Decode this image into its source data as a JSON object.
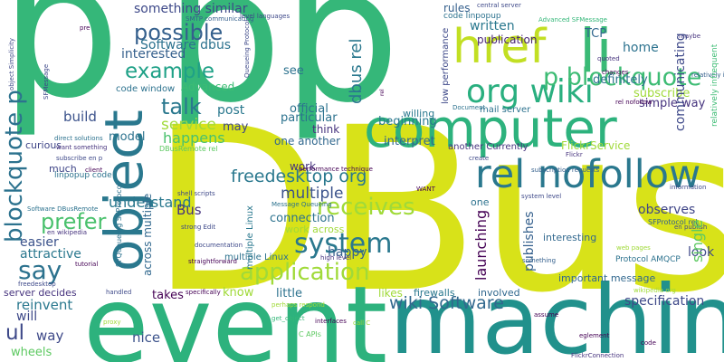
{
  "words": [
    {
      "id": "w-p1",
      "text": "p",
      "color": "#35b779"
    },
    {
      "id": "w-pp",
      "text": "pp",
      "color": "#35b779"
    },
    {
      "id": "w-dbus",
      "text": "DBus",
      "color": "#d8e219"
    },
    {
      "id": "w-event",
      "text": "event",
      "color": "#2db27d"
    },
    {
      "id": "w-machine",
      "text": "machine",
      "color": "#21918c"
    },
    {
      "id": "w-computer",
      "text": "computer",
      "color": "#2db27d"
    },
    {
      "id": "w-li",
      "text": "li",
      "color": "#3aba76"
    },
    {
      "id": "w-href",
      "text": "href",
      "color": "#c2df23"
    },
    {
      "id": "w-relnf",
      "text": "rel nofollow",
      "color": "#2a788e"
    },
    {
      "id": "w-orgwiki",
      "text": "org wiki",
      "color": "#29af7f"
    },
    {
      "id": "w-pblock",
      "text": "p blockquote",
      "color": "#3dbc74"
    },
    {
      "id": "w-system",
      "text": "system",
      "color": "#2a788e"
    },
    {
      "id": "w-application",
      "text": "application",
      "color": "#a0da39"
    },
    {
      "id": "w-receives",
      "text": "receives",
      "color": "#a0da39"
    },
    {
      "id": "w-say",
      "text": "say",
      "color": "#2c728e"
    },
    {
      "id": "w-possible",
      "text": "possible",
      "color": "#35608d"
    },
    {
      "id": "w-example",
      "text": "example",
      "color": "#1fa187"
    },
    {
      "id": "w-talk",
      "text": "talk",
      "color": "#2a788e"
    },
    {
      "id": "w-prefer",
      "text": "prefer",
      "color": "#4ac16d"
    },
    {
      "id": "w-fdorg",
      "text": "freedesktop org",
      "color": "#2a788e"
    },
    {
      "id": "w-multiple",
      "text": "multiple",
      "color": "#3b528b"
    },
    {
      "id": "w-wikisw",
      "text": "wiki Software",
      "color": "#31688e"
    },
    {
      "id": "w-nice",
      "text": "nice",
      "color": "#3b528b"
    },
    {
      "id": "w-ul",
      "text": "ul",
      "color": "#3e4989"
    },
    {
      "id": "w-way",
      "text": "way",
      "color": "#3e4989"
    },
    {
      "id": "w-wheels",
      "text": "wheels",
      "color": "#5ec962"
    },
    {
      "id": "w-reinvent",
      "text": "reinvent",
      "color": "#2a788e"
    },
    {
      "id": "w-will",
      "text": "will",
      "color": "#3e4989"
    },
    {
      "id": "w-attractive",
      "text": "attractive",
      "color": "#2a788e"
    },
    {
      "id": "w-easier",
      "text": "easier",
      "color": "#3b528b"
    },
    {
      "id": "w-serverdecides",
      "text": "server decides",
      "color": "#46337e"
    },
    {
      "id": "w-build",
      "text": "build",
      "color": "#3b528b"
    },
    {
      "id": "w-curious",
      "text": "curious",
      "color": "#404688"
    },
    {
      "id": "w-much",
      "text": "much",
      "color": "#404688"
    },
    {
      "id": "w-model",
      "text": "model",
      "color": "#2c728e"
    },
    {
      "id": "w-understand",
      "text": "understand",
      "color": "#2a788e"
    },
    {
      "id": "w-service",
      "text": "service",
      "color": "#a0da39"
    },
    {
      "id": "w-happens",
      "text": "happens",
      "color": "#4ac16d"
    },
    {
      "id": "w-post",
      "text": "post",
      "color": "#2a788e"
    },
    {
      "id": "w-may",
      "text": "may",
      "color": "#404688"
    },
    {
      "id": "w-advanced",
      "text": "Advanced",
      "color": "#3dbc74"
    },
    {
      "id": "w-codewindow",
      "text": "code window",
      "color": "#2c728e"
    },
    {
      "id": "w-sdbus",
      "text": "Software dbus",
      "color": "#2c728e"
    },
    {
      "id": "w-interested",
      "text": "interested",
      "color": "#35608d"
    },
    {
      "id": "w-somesim",
      "text": "something similar",
      "color": "#3e4989"
    },
    {
      "id": "w-bus",
      "text": "Bus",
      "color": "#46337e"
    },
    {
      "id": "w-takes",
      "text": "takes",
      "color": "#440154"
    },
    {
      "id": "w-know",
      "text": "know",
      "color": "#a0da39"
    },
    {
      "id": "w-little",
      "text": "little",
      "color": "#2c728e"
    },
    {
      "id": "w-happy",
      "text": "happy",
      "color": "#35608d"
    },
    {
      "id": "w-connection",
      "text": "connection",
      "color": "#2c728e"
    },
    {
      "id": "w-workacross",
      "text": "work across",
      "color": "#a0da39"
    },
    {
      "id": "w-work",
      "text": "work",
      "color": "#46337e"
    },
    {
      "id": "w-oneanother",
      "text": "one another",
      "color": "#31688e"
    },
    {
      "id": "w-think",
      "text": "think",
      "color": "#46337e"
    },
    {
      "id": "w-particular",
      "text": "particular",
      "color": "#2c728e"
    },
    {
      "id": "w-official",
      "text": "official",
      "color": "#2c728e"
    },
    {
      "id": "w-see",
      "text": "see",
      "color": "#2c728e"
    },
    {
      "id": "w-beginning",
      "text": "beginning",
      "color": "#2a788e"
    },
    {
      "id": "w-interpret",
      "text": "interpret",
      "color": "#31688e"
    },
    {
      "id": "w-willing",
      "text": "willing",
      "color": "#2a788e"
    },
    {
      "id": "w-publication",
      "text": "publication",
      "color": "#482475"
    },
    {
      "id": "w-written",
      "text": "written",
      "color": "#2a788e"
    },
    {
      "id": "w-rules",
      "text": "rules",
      "color": "#35608d"
    },
    {
      "id": "w-tcp",
      "text": "TCP",
      "color": "#31688e"
    },
    {
      "id": "w-home",
      "text": "home",
      "color": "#2c728e"
    },
    {
      "id": "w-definitely",
      "text": "definitely",
      "color": "#2c728e"
    },
    {
      "id": "w-subscribe",
      "text": "subscribe",
      "color": "#a0da39"
    },
    {
      "id": "w-simpleway",
      "text": "simple way",
      "color": "#46337e"
    },
    {
      "id": "w-flickrsvc",
      "text": "FlickrService",
      "color": "#a0da39"
    },
    {
      "id": "w-another",
      "text": "another Currently",
      "color": "#46337e"
    },
    {
      "id": "w-observes",
      "text": "observes",
      "color": "#404688"
    },
    {
      "id": "w-look",
      "text": "look",
      "color": "#3e4989"
    },
    {
      "id": "w-spec",
      "text": "specification",
      "color": "#3e4989"
    },
    {
      "id": "w-likes",
      "text": "likes",
      "color": "#a0da39"
    },
    {
      "id": "w-firewalls",
      "text": "firewalls",
      "color": "#2a788e"
    },
    {
      "id": "w-involved",
      "text": "involved",
      "color": "#31688e"
    },
    {
      "id": "w-one",
      "text": "one",
      "color": "#2c728e"
    },
    {
      "id": "w-interesting",
      "text": "interesting",
      "color": "#31688e"
    },
    {
      "id": "w-impmessage",
      "text": "important message",
      "color": "#31688e"
    },
    {
      "id": "w-mailserver",
      "text": "mail server",
      "color": "#2c728e"
    },
    {
      "id": "w-proto-amqcp",
      "text": "Protocol AMQCP",
      "color": "#2c728e"
    },
    {
      "id": "w-sfprotocol-rel",
      "text": "SFProtocol rel",
      "color": "#35608d"
    },
    {
      "id": "w-enpublish",
      "text": "en publish",
      "color": "#3e4989"
    },
    {
      "id": "w-smtp",
      "text": "SMTP communicating",
      "color": "#35608d"
    },
    {
      "id": "w-levellang",
      "text": "level languages",
      "color": "#3e4989"
    },
    {
      "id": "w-central",
      "text": "central server",
      "color": "#3e4989"
    },
    {
      "id": "w-codelinpopup",
      "text": "code linpopup",
      "color": "#2c728e"
    },
    {
      "id": "w-advsf",
      "text": "Advanced SFMessage",
      "color": "#35b779"
    },
    {
      "id": "w-direct",
      "text": "direct solutions",
      "color": "#2c728e"
    },
    {
      "id": "w-wantsome",
      "text": "want something",
      "color": "#46337e"
    },
    {
      "id": "w-subenp",
      "text": "subscribe en p",
      "color": "#3e4989"
    },
    {
      "id": "w-linpopup",
      "text": "linpopup code",
      "color": "#2c728e"
    },
    {
      "id": "w-sdbusremote",
      "text": "Software DBusRemote",
      "color": "#2c728e"
    },
    {
      "id": "w-enwiki",
      "text": "en wikipedia",
      "color": "#46337e"
    },
    {
      "id": "w-freedesk",
      "text": "freedesktop",
      "color": "#3e4989"
    },
    {
      "id": "w-perfresp",
      "text": "perhaps respond",
      "color": "#a0da39"
    },
    {
      "id": "w-multipleinux",
      "text": "multiple Linux",
      "color": "#2c728e"
    },
    {
      "id": "w-perftech",
      "text": "performance technique",
      "color": "#440154"
    },
    {
      "id": "w-highlevel",
      "text": "high level",
      "color": "#46337e"
    },
    {
      "id": "w-msgqueue",
      "text": "Message Queueing",
      "color": "#2c728e"
    },
    {
      "id": "w-strongedit",
      "text": "strong Edit",
      "color": "#3e4989"
    },
    {
      "id": "w-shellscripts",
      "text": "shell scripts",
      "color": "#3e4989"
    },
    {
      "id": "w-documentation",
      "text": "documentation",
      "color": "#3e4989"
    },
    {
      "id": "w-capis",
      "text": "C APIs",
      "color": "#5ec962"
    },
    {
      "id": "w-callc",
      "text": "call C",
      "color": "#a0da39"
    },
    {
      "id": "w-relinfreq",
      "text": "relatively infrequent",
      "color": "#35608d"
    },
    {
      "id": "w-wikimedia",
      "text": "wikipedia org",
      "color": "#a0da39"
    },
    {
      "id": "w-webpages",
      "text": "web pages",
      "color": "#a0da39"
    },
    {
      "id": "w-systemlevel",
      "text": "system level",
      "color": "#3e4989"
    },
    {
      "id": "w-subsreq",
      "text": "subscription requests",
      "color": "#35608d"
    },
    {
      "id": "w-flickr",
      "text": "Flickr",
      "color": "#46337e"
    },
    {
      "id": "w-information",
      "text": "information",
      "color": "#3e4989"
    },
    {
      "id": "w-document",
      "text": "Document",
      "color": "#2c728e"
    },
    {
      "id": "w-dbusremoterel",
      "text": "DBusRemote rel",
      "color": "#5ec962"
    },
    {
      "id": "w-something",
      "text": "something",
      "color": "#35608d"
    },
    {
      "id": "w-maybe",
      "text": "maybe",
      "color": "#46337e"
    },
    {
      "id": "w-quoted",
      "text": "quoted",
      "color": "#46337e"
    },
    {
      "id": "w-sf-nolink",
      "text": "rel nofollow",
      "color": "#440154"
    },
    {
      "id": "w-changes",
      "text": "changes",
      "color": "#440154"
    },
    {
      "id": "w-want",
      "text": "WANT",
      "color": "#440154"
    },
    {
      "id": "w-create",
      "text": "create",
      "color": "#3e4989"
    },
    {
      "id": "w-eglement",
      "text": "eglement",
      "color": "#440154"
    },
    {
      "id": "w-cod",
      "text": "code",
      "color": "#440154"
    },
    {
      "id": "w-sfflickrconn",
      "text": "FlickrConnection",
      "color": "#46337e"
    },
    {
      "id": "w-assume",
      "text": "assume",
      "color": "#440154"
    },
    {
      "id": "w-proxy",
      "text": "proxy",
      "color": "#a0da39"
    },
    {
      "id": "w-tutorial",
      "text": "tutorial",
      "color": "#440154"
    },
    {
      "id": "w-handled",
      "text": "handled",
      "color": "#3e4989"
    },
    {
      "id": "w-getobject",
      "text": "get_object",
      "color": "#35b779"
    },
    {
      "id": "w-interfaces",
      "text": "interfaces",
      "color": "#440154"
    },
    {
      "id": "w-specifically",
      "text": "specifically",
      "color": "#440154"
    },
    {
      "id": "w-straightfwd",
      "text": "straightforward",
      "color": "#440154"
    },
    {
      "id": "w-client",
      "text": "client",
      "color": "#440154"
    },
    {
      "id": "w-pre",
      "text": "pre",
      "color": "#440154"
    },
    {
      "id": "w-blockquote-v",
      "text": "blockquote p",
      "color": "#2c728e"
    },
    {
      "id": "w-object-v",
      "text": "object",
      "color": "#2a788e"
    },
    {
      "id": "w-dbusrel-v",
      "text": "dbus rel",
      "color": "#2a788e"
    },
    {
      "id": "w-launching-v",
      "text": "launching",
      "color": "#440154"
    },
    {
      "id": "w-sinlge-v",
      "text": "single",
      "color": "#5ec962"
    },
    {
      "id": "w-comm-v",
      "text": "communicating",
      "color": "#3e4989"
    },
    {
      "id": "w-publishes-v",
      "text": "publishes",
      "color": "#35608d"
    },
    {
      "id": "w-acrossmult-v",
      "text": "across multiple",
      "color": "#31688e"
    },
    {
      "id": "w-multlinux-v",
      "text": "multiple Linux",
      "color": "#2a788e"
    },
    {
      "id": "w-lowperf-v",
      "text": "low performance",
      "color": "#3e4989"
    },
    {
      "id": "w-sfqueue-v",
      "text": "SFQueueing SFProtocol",
      "color": "#2c728e"
    },
    {
      "id": "w-relinf-v",
      "text": "relatively infrequent",
      "color": "#3dbc74"
    },
    {
      "id": "w-objsimp-v",
      "text": "object Simplicity",
      "color": "#3e4989"
    },
    {
      "id": "w-sfmessage-v",
      "text": "SFMessage",
      "color": "#3e4989"
    },
    {
      "id": "w-msgq-v",
      "text": "Queueing Protocol",
      "color": "#3e4989"
    },
    {
      "id": "w-rel-v",
      "text": "rel",
      "color": "#440154"
    }
  ]
}
